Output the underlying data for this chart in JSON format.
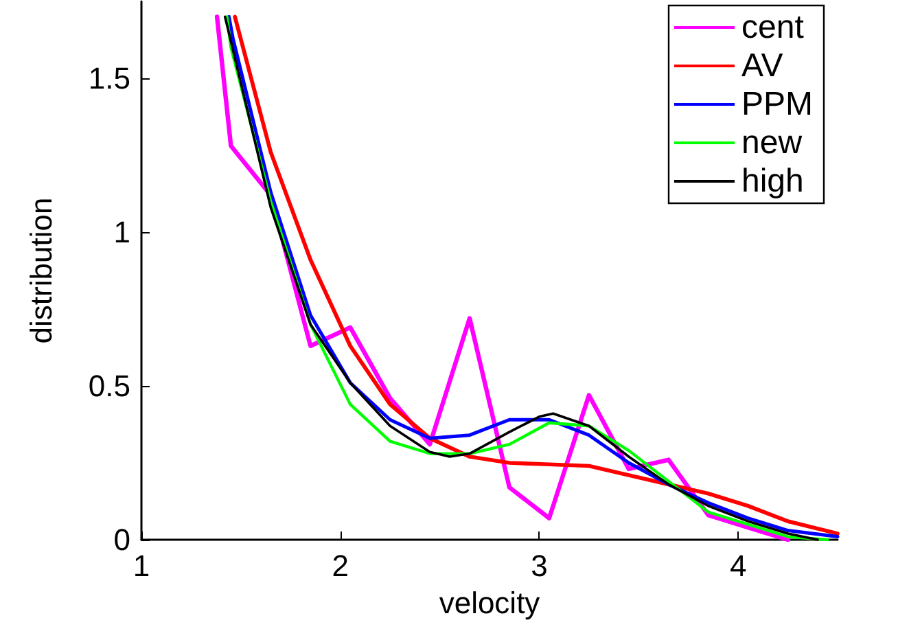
{
  "chart_data": {
    "type": "line",
    "xlabel": "velocity",
    "ylabel": "distribution",
    "xlim": [
      1,
      4.5
    ],
    "xticks": [
      1,
      2,
      3,
      4
    ],
    "ylim": [
      0,
      1.75
    ],
    "yticks": [
      0,
      0.5,
      1,
      1.5
    ],
    "grid": false,
    "legend": "top right",
    "marker": "none",
    "line_style": "solid",
    "series": [
      {
        "name": "cent",
        "color": "#ff00ff",
        "x": [
          1.38,
          1.45,
          1.65,
          1.85,
          2.05,
          2.25,
          2.45,
          2.65,
          2.85,
          3.05,
          3.25,
          3.45,
          3.65,
          3.85,
          4.05,
          4.25
        ],
        "values": [
          1.7,
          1.28,
          1.12,
          0.63,
          0.69,
          0.46,
          0.31,
          0.72,
          0.17,
          0.07,
          0.47,
          0.23,
          0.26,
          0.08,
          0.04,
          0
        ]
      },
      {
        "name": "AV",
        "color": "#ff0000",
        "x": [
          1.47,
          1.65,
          1.85,
          2.05,
          2.25,
          2.45,
          2.65,
          2.85,
          3.05,
          3.25,
          3.45,
          3.65,
          3.85,
          4.05,
          4.25,
          4.5
        ],
        "values": [
          1.7,
          1.26,
          0.91,
          0.63,
          0.44,
          0.33,
          0.27,
          0.25,
          0.245,
          0.24,
          0.21,
          0.18,
          0.15,
          0.11,
          0.06,
          0.02
        ]
      },
      {
        "name": "PPM",
        "color": "#0000ff",
        "x": [
          1.44,
          1.46,
          1.65,
          1.85,
          2.05,
          2.25,
          2.45,
          2.65,
          2.85,
          3.05,
          3.25,
          3.45,
          3.65,
          3.85,
          4.05,
          4.25,
          4.5
        ],
        "values": [
          1.7,
          1.63,
          1.13,
          0.73,
          0.51,
          0.39,
          0.33,
          0.34,
          0.39,
          0.39,
          0.34,
          0.25,
          0.18,
          0.12,
          0.07,
          0.03,
          0.01
        ]
      },
      {
        "name": "new",
        "color": "#00ff00",
        "x": [
          1.43,
          1.45,
          1.65,
          1.85,
          2.05,
          2.25,
          2.45,
          2.65,
          2.85,
          3.05,
          3.25,
          3.45,
          3.65,
          3.85,
          4.05,
          4.25,
          4.45
        ],
        "values": [
          1.7,
          1.6,
          1.1,
          0.7,
          0.44,
          0.32,
          0.28,
          0.28,
          0.31,
          0.38,
          0.37,
          0.29,
          0.19,
          0.09,
          0.05,
          0.01,
          0
        ]
      },
      {
        "name": "high",
        "color": "#000000",
        "x": [
          1.42,
          1.45,
          1.65,
          1.85,
          2.05,
          2.25,
          2.45,
          2.55,
          2.65,
          2.85,
          3.0,
          3.07,
          3.25,
          3.45,
          3.65,
          3.85,
          4.05,
          4.25,
          4.4
        ],
        "values": [
          1.7,
          1.62,
          1.08,
          0.7,
          0.51,
          0.37,
          0.285,
          0.27,
          0.28,
          0.35,
          0.4,
          0.41,
          0.37,
          0.27,
          0.18,
          0.11,
          0.06,
          0.02,
          0
        ]
      }
    ]
  }
}
